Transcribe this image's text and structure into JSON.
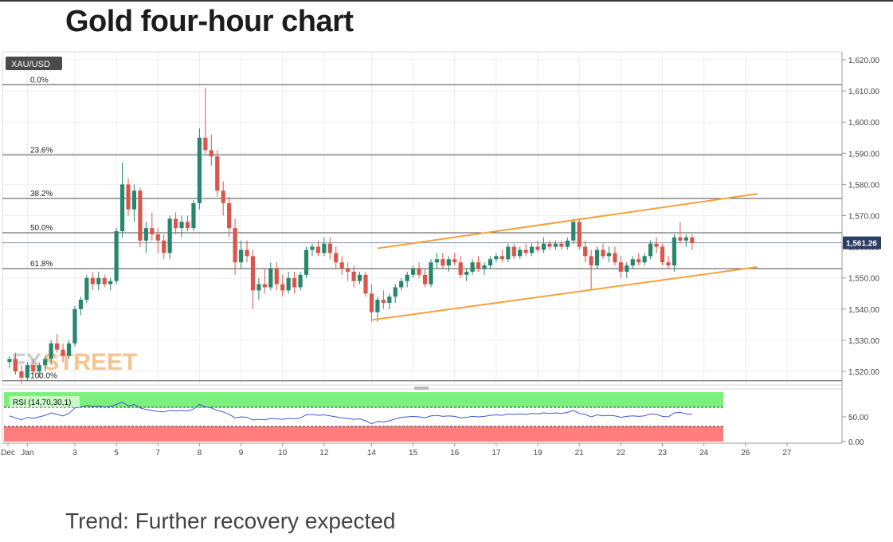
{
  "page": {
    "title": "Gold four-hour chart",
    "trend_text": "Trend: Further recovery expected"
  },
  "colors": {
    "bull": "#26876d",
    "bear": "#d9564c",
    "fib": "#4d4d4d",
    "channel": "#f5a23c",
    "price_line": "#7d8fb3",
    "rsi_line": "#3f57d6",
    "rsi_overbought": "#7cf07c",
    "rsi_oversold": "#ff7d7d",
    "grid": "#eeeeee",
    "badge_bg": "#4a4a4a",
    "price_badge_bg": "#2c3e66"
  },
  "chart_data": {
    "type": "candlestick",
    "symbol": "XAU/USD",
    "timeframe": "4H",
    "ylim": [
      1515,
      1622
    ],
    "y_ticks": [
      "1,620.00",
      "1,610.00",
      "1,600.00",
      "1,590.00",
      "1,580.00",
      "1,570.00",
      "1,560.00",
      "1,550.00",
      "1,540.00",
      "1,530.00",
      "1,520.00"
    ],
    "last_price": 1561.26,
    "last_price_label": "1,561.26",
    "x_labels": [
      {
        "label": "Dec",
        "i": -1
      },
      {
        "label": "Jan",
        "i": 3
      },
      {
        "label": "3",
        "i": 11
      },
      {
        "label": "5",
        "i": 18
      },
      {
        "label": "7",
        "i": 25
      },
      {
        "label": "8",
        "i": 32
      },
      {
        "label": "9",
        "i": 39
      },
      {
        "label": "10",
        "i": 46
      },
      {
        "label": "12",
        "i": 53
      },
      {
        "label": "14",
        "i": 61
      },
      {
        "label": "15",
        "i": 68
      },
      {
        "label": "16",
        "i": 75
      },
      {
        "label": "17",
        "i": 82
      },
      {
        "label": "19",
        "i": 89
      },
      {
        "label": "21",
        "i": 96
      },
      {
        "label": "22",
        "i": 103
      },
      {
        "label": "23",
        "i": 110
      },
      {
        "label": "24",
        "i": 117
      },
      {
        "label": "26",
        "i": 124
      },
      {
        "label": "27",
        "i": 131
      }
    ],
    "fibonacci": [
      {
        "label": "0.0%",
        "price": 1612
      },
      {
        "label": "23.6%",
        "price": 1589.5
      },
      {
        "label": "38.2%",
        "price": 1575.5
      },
      {
        "label": "50.0%",
        "price": 1564.5
      },
      {
        "label": "61.8%",
        "price": 1553
      },
      {
        "label": "100.0%",
        "price": 1517
      }
    ],
    "channel": {
      "upper": [
        {
          "i": 62,
          "price": 1559.5
        },
        {
          "i": 126,
          "price": 1577
        }
      ],
      "lower": [
        {
          "i": 61,
          "price": 1536.5
        },
        {
          "i": 126,
          "price": 1553.5
        }
      ]
    },
    "candles": [
      [
        1523,
        1525,
        1521,
        1524
      ],
      [
        1524,
        1526,
        1519,
        1520
      ],
      [
        1520,
        1522,
        1516,
        1518
      ],
      [
        1518,
        1523,
        1517,
        1522
      ],
      [
        1522,
        1524,
        1519,
        1520
      ],
      [
        1520,
        1523,
        1518,
        1522
      ],
      [
        1522,
        1525,
        1520,
        1524
      ],
      [
        1524,
        1530,
        1522,
        1529
      ],
      [
        1529,
        1532,
        1526,
        1527
      ],
      [
        1527,
        1529,
        1523,
        1525
      ],
      [
        1525,
        1530,
        1524,
        1529
      ],
      [
        1529,
        1541,
        1528,
        1540
      ],
      [
        1540,
        1544,
        1538,
        1543
      ],
      [
        1543,
        1551,
        1542,
        1550
      ],
      [
        1550,
        1552,
        1546,
        1548
      ],
      [
        1548,
        1552,
        1546,
        1550
      ],
      [
        1550,
        1551,
        1547,
        1548
      ],
      [
        1548,
        1550,
        1546,
        1549
      ],
      [
        1549,
        1566,
        1548,
        1565
      ],
      [
        1565,
        1587,
        1563,
        1580
      ],
      [
        1580,
        1582,
        1570,
        1572
      ],
      [
        1572,
        1580,
        1568,
        1578
      ],
      [
        1578,
        1579,
        1560,
        1562
      ],
      [
        1562,
        1568,
        1558,
        1566
      ],
      [
        1566,
        1571,
        1562,
        1564
      ],
      [
        1564,
        1566,
        1558,
        1562
      ],
      [
        1562,
        1564,
        1556,
        1558
      ],
      [
        1558,
        1570,
        1556,
        1569
      ],
      [
        1569,
        1571,
        1564,
        1566
      ],
      [
        1566,
        1570,
        1563,
        1568
      ],
      [
        1568,
        1570,
        1565,
        1566
      ],
      [
        1566,
        1575,
        1565,
        1574
      ],
      [
        1574,
        1598,
        1572,
        1595
      ],
      [
        1595,
        1611,
        1590,
        1591
      ],
      [
        1591,
        1596,
        1586,
        1589
      ],
      [
        1589,
        1591,
        1576,
        1578
      ],
      [
        1578,
        1581,
        1570,
        1574
      ],
      [
        1574,
        1576,
        1563,
        1566
      ],
      [
        1566,
        1569,
        1551,
        1555
      ],
      [
        1555,
        1562,
        1553,
        1559
      ],
      [
        1559,
        1562,
        1555,
        1557
      ],
      [
        1557,
        1559,
        1540,
        1546
      ],
      [
        1546,
        1550,
        1543,
        1548
      ],
      [
        1548,
        1553,
        1545,
        1547
      ],
      [
        1547,
        1555,
        1546,
        1553
      ],
      [
        1553,
        1555,
        1546,
        1548
      ],
      [
        1548,
        1551,
        1544,
        1546
      ],
      [
        1546,
        1552,
        1545,
        1550
      ],
      [
        1550,
        1552,
        1545,
        1547
      ],
      [
        1547,
        1552,
        1546,
        1551
      ],
      [
        1551,
        1560,
        1550,
        1559
      ],
      [
        1559,
        1561,
        1557,
        1560
      ],
      [
        1560,
        1562,
        1557,
        1558
      ],
      [
        1558,
        1563,
        1557,
        1561
      ],
      [
        1561,
        1563,
        1556,
        1558
      ],
      [
        1558,
        1560,
        1553,
        1555
      ],
      [
        1555,
        1557,
        1551,
        1553
      ],
      [
        1553,
        1555,
        1549,
        1552
      ],
      [
        1552,
        1554,
        1547,
        1549
      ],
      [
        1549,
        1552,
        1548,
        1551
      ],
      [
        1551,
        1552,
        1544,
        1545
      ],
      [
        1545,
        1548,
        1536,
        1539
      ],
      [
        1539,
        1544,
        1536,
        1543
      ],
      [
        1543,
        1546,
        1540,
        1542
      ],
      [
        1542,
        1545,
        1540,
        1544
      ],
      [
        1544,
        1548,
        1542,
        1547
      ],
      [
        1547,
        1550,
        1546,
        1549
      ],
      [
        1549,
        1552,
        1547,
        1551
      ],
      [
        1551,
        1554,
        1550,
        1553
      ],
      [
        1553,
        1555,
        1550,
        1551
      ],
      [
        1551,
        1553,
        1547,
        1548
      ],
      [
        1548,
        1556,
        1547,
        1555
      ],
      [
        1555,
        1558,
        1553,
        1556
      ],
      [
        1556,
        1558,
        1553,
        1554
      ],
      [
        1554,
        1557,
        1552,
        1556
      ],
      [
        1556,
        1558,
        1554,
        1555
      ],
      [
        1555,
        1557,
        1550,
        1551
      ],
      [
        1551,
        1553,
        1549,
        1552
      ],
      [
        1552,
        1556,
        1551,
        1555
      ],
      [
        1555,
        1557,
        1552,
        1553
      ],
      [
        1553,
        1555,
        1551,
        1554
      ],
      [
        1554,
        1557,
        1553,
        1556
      ],
      [
        1556,
        1558,
        1555,
        1557
      ],
      [
        1557,
        1559,
        1555,
        1556
      ],
      [
        1556,
        1561,
        1555,
        1560
      ],
      [
        1560,
        1561,
        1556,
        1557
      ],
      [
        1557,
        1560,
        1556,
        1559
      ],
      [
        1559,
        1561,
        1557,
        1558
      ],
      [
        1558,
        1561,
        1557,
        1560
      ],
      [
        1560,
        1562,
        1558,
        1559
      ],
      [
        1559,
        1563,
        1558,
        1561
      ],
      [
        1561,
        1562,
        1559,
        1560
      ],
      [
        1560,
        1562,
        1559,
        1561
      ],
      [
        1561,
        1562,
        1559,
        1560
      ],
      [
        1560,
        1563,
        1559,
        1562
      ],
      [
        1562,
        1569,
        1561,
        1568
      ],
      [
        1568,
        1569,
        1559,
        1560
      ],
      [
        1560,
        1562,
        1555,
        1557
      ],
      [
        1557,
        1559,
        1546,
        1554
      ],
      [
        1554,
        1560,
        1553,
        1559
      ],
      [
        1559,
        1561,
        1556,
        1557
      ],
      [
        1557,
        1560,
        1555,
        1558
      ],
      [
        1558,
        1560,
        1554,
        1555
      ],
      [
        1555,
        1557,
        1550,
        1552
      ],
      [
        1552,
        1555,
        1550,
        1554
      ],
      [
        1554,
        1557,
        1553,
        1556
      ],
      [
        1556,
        1558,
        1554,
        1555
      ],
      [
        1555,
        1558,
        1554,
        1557
      ],
      [
        1557,
        1562,
        1556,
        1561
      ],
      [
        1561,
        1563,
        1558,
        1560
      ],
      [
        1560,
        1561,
        1554,
        1555
      ],
      [
        1555,
        1557,
        1553,
        1554
      ],
      [
        1554,
        1564,
        1552,
        1563
      ],
      [
        1563,
        1568,
        1561,
        1562
      ],
      [
        1562,
        1564,
        1560,
        1563
      ],
      [
        1563,
        1564,
        1559,
        1561.26
      ]
    ],
    "rsi": {
      "label": "RSI (14,70,30,1)",
      "ticks": [
        "50.00",
        "0.00"
      ],
      "ylim": [
        0,
        100
      ],
      "overbought": 70,
      "oversold": 30,
      "values": [
        52,
        48,
        44,
        49,
        47,
        50,
        53,
        58,
        55,
        52,
        57,
        68,
        70,
        73,
        71,
        72,
        70,
        71,
        75,
        80,
        72,
        75,
        68,
        65,
        63,
        61,
        60,
        63,
        62,
        63,
        62,
        66,
        75,
        70,
        68,
        63,
        60,
        55,
        48,
        50,
        49,
        44,
        45,
        44,
        47,
        46,
        45,
        47,
        46,
        48,
        54,
        55,
        53,
        54,
        52,
        50,
        48,
        47,
        45,
        46,
        42,
        36,
        41,
        40,
        42,
        46,
        49,
        50,
        51,
        50,
        48,
        52,
        53,
        51,
        52,
        51,
        48,
        49,
        51,
        50,
        51,
        53,
        54,
        53,
        56,
        55,
        56,
        55,
        57,
        56,
        58,
        57,
        58,
        57,
        59,
        63,
        57,
        55,
        50,
        54,
        52,
        53,
        52,
        49,
        51,
        52,
        51,
        52,
        56,
        55,
        51,
        50,
        58,
        59,
        56,
        55
      ]
    }
  }
}
